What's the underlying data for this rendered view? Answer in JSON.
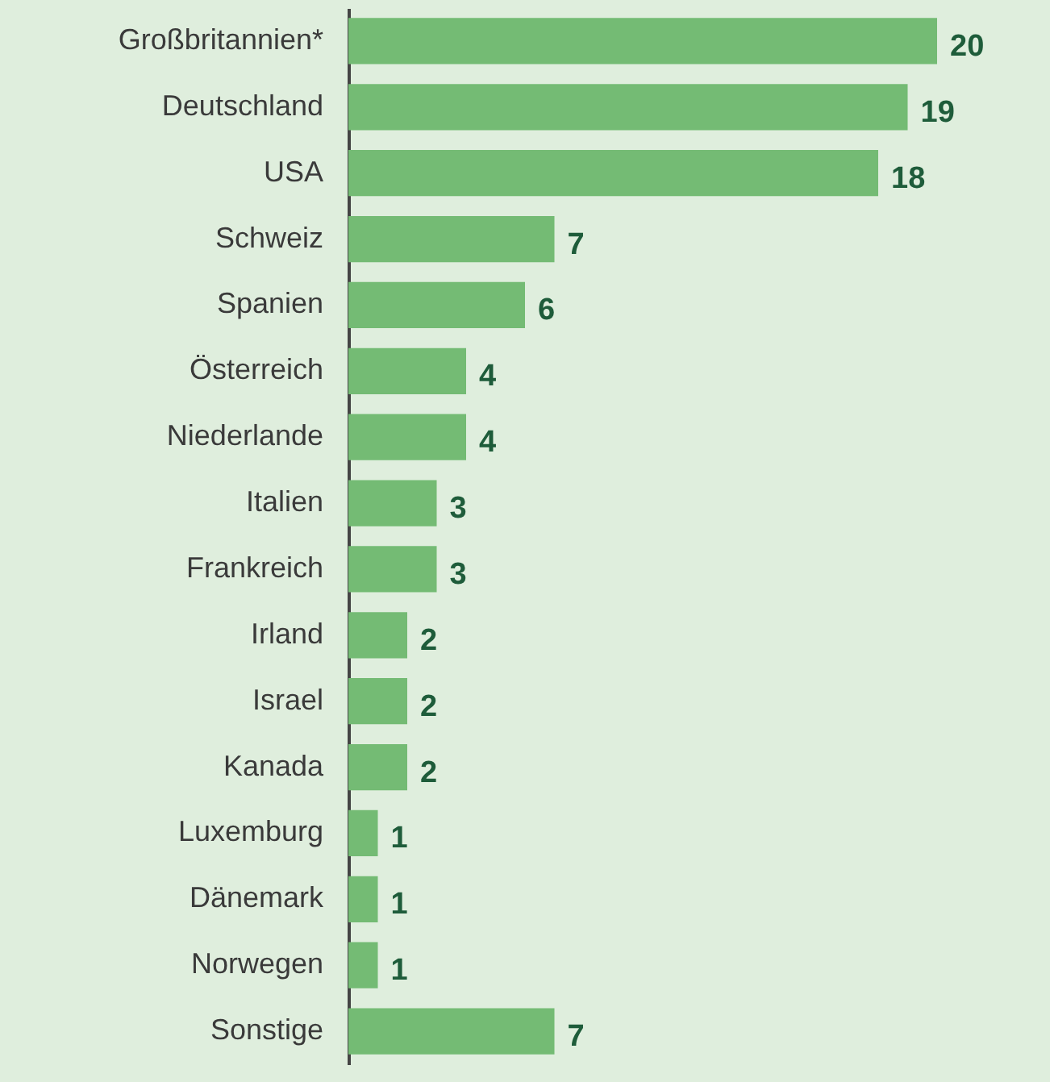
{
  "chart_data": {
    "type": "bar",
    "orientation": "horizontal",
    "data_labels": true,
    "categories": [
      "Großbritannien*",
      "Deutschland",
      "USA",
      "Schweiz",
      "Spanien",
      "Österreich",
      "Niederlande",
      "Italien",
      "Frankreich",
      "Irland",
      "Israel",
      "Kanada",
      "Luxemburg",
      "Dänemark",
      "Norwegen",
      "Sonstige"
    ],
    "values": [
      20,
      19,
      18,
      7,
      6,
      4,
      4,
      3,
      3,
      2,
      2,
      2,
      1,
      1,
      1,
      7
    ],
    "color": "#74bb74"
  }
}
